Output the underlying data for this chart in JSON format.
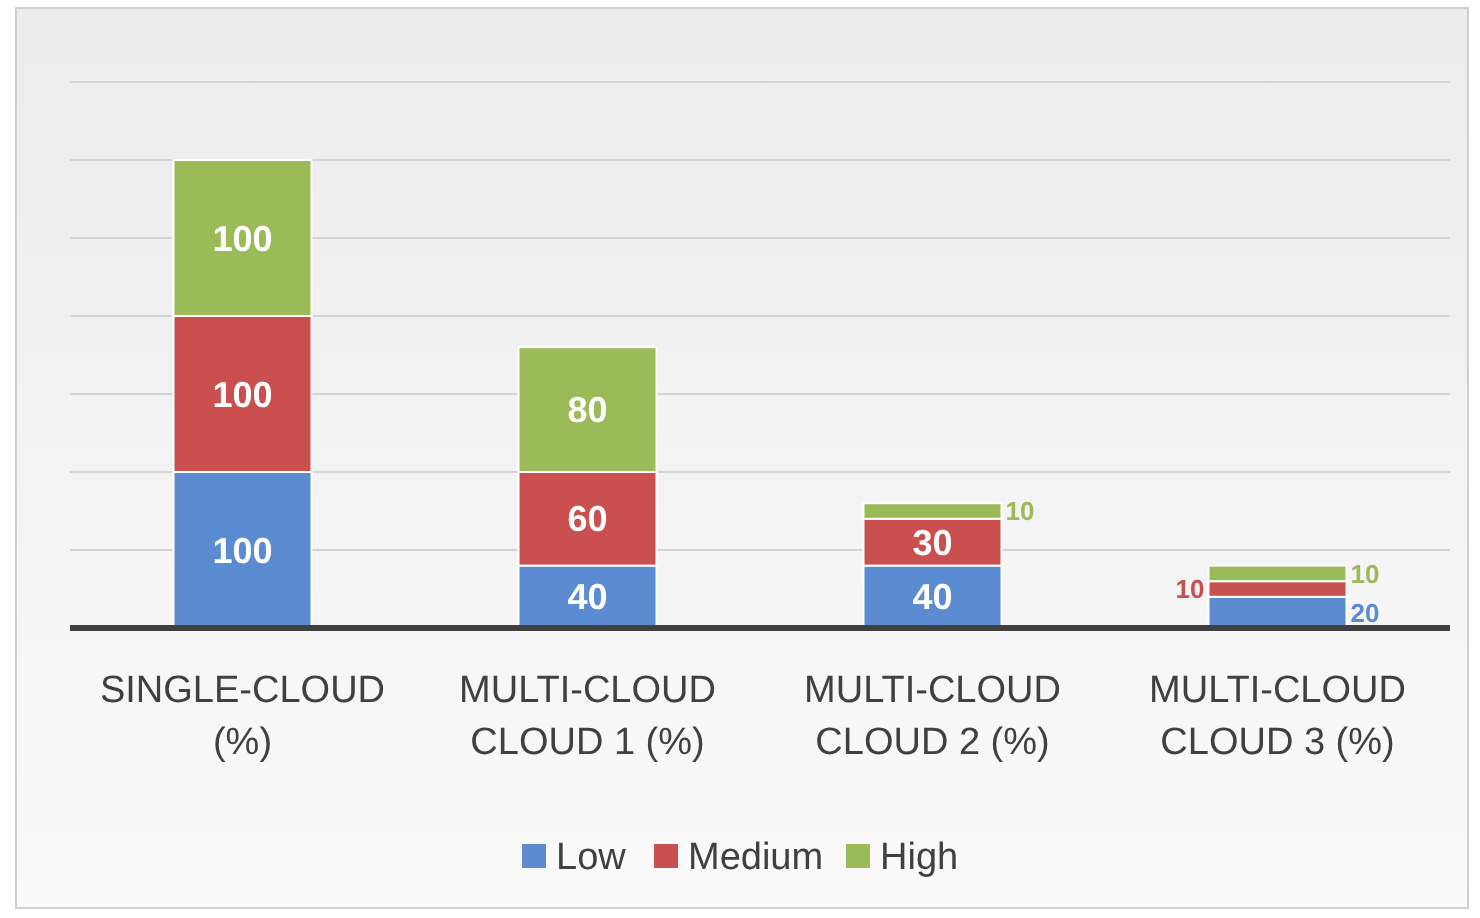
{
  "chart_data": {
    "type": "bar",
    "stacked": true,
    "categories": [
      "SINGLE-CLOUD (%)",
      "MULTI-CLOUD CLOUD 1 (%)",
      "MULTI-CLOUD CLOUD 2 (%)",
      "MULTI-CLOUD CLOUD 3 (%)"
    ],
    "series": [
      {
        "name": "Low",
        "color": "#5b8bd0",
        "values": [
          100,
          40,
          40,
          20
        ]
      },
      {
        "name": "Medium",
        "color": "#c9504e",
        "values": [
          100,
          60,
          30,
          10
        ]
      },
      {
        "name": "High",
        "color": "#9bbb59",
        "values": [
          100,
          80,
          10,
          10
        ]
      }
    ],
    "ylim": [
      0,
      350
    ],
    "yticks": [
      {
        "value": 0,
        "label": null
      },
      {
        "value": 50,
        "label": null
      },
      {
        "value": 100,
        "label": null
      },
      {
        "value": 150,
        "label": null
      },
      {
        "value": 200,
        "label": null
      },
      {
        "value": 250,
        "label": null
      },
      {
        "value": 300,
        "label": null
      },
      {
        "value": 350,
        "label": null
      }
    ],
    "tick_labels": "x",
    "grid": "y",
    "data_labels": true,
    "legend": "bottom"
  }
}
